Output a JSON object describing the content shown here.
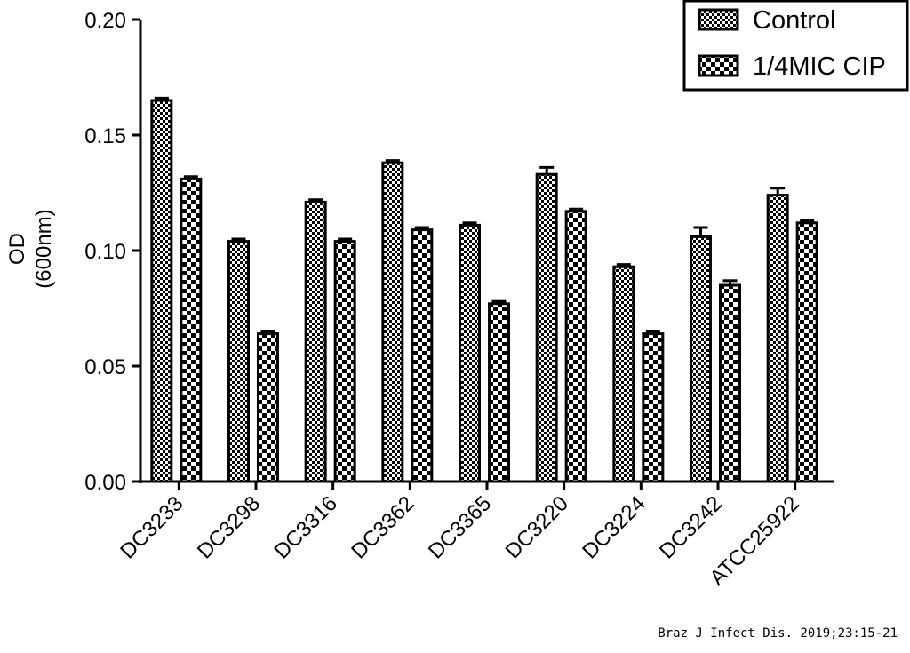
{
  "chart_data": {
    "type": "bar",
    "title": "",
    "xlabel": "",
    "ylabel": "OD",
    "ylabel_unit": "(600nm)",
    "ylim": [
      0,
      0.2
    ],
    "yticks": [
      "0.00",
      "0.05",
      "0.10",
      "0.15",
      "0.20"
    ],
    "ytick_values": [
      0,
      0.05,
      0.1,
      0.15,
      0.2
    ],
    "categories": [
      "DC3233",
      "DC3298",
      "DC3316",
      "DC3362",
      "DC3365",
      "DC3220",
      "DC3224",
      "DC3242",
      "ATCC25922"
    ],
    "series": [
      {
        "name": "Control",
        "pattern": "fine-checker",
        "values": [
          0.165,
          0.104,
          0.121,
          0.138,
          0.111,
          0.133,
          0.093,
          0.106,
          0.124
        ],
        "errors": [
          0.001,
          0.001,
          0.001,
          0.001,
          0.001,
          0.003,
          0.001,
          0.004,
          0.003
        ]
      },
      {
        "name": "1/4MIC CIP",
        "pattern": "coarse-checker",
        "values": [
          0.131,
          0.064,
          0.104,
          0.109,
          0.077,
          0.117,
          0.064,
          0.085,
          0.112
        ],
        "errors": [
          0.001,
          0.001,
          0.001,
          0.001,
          0.001,
          0.001,
          0.001,
          0.002,
          0.001
        ]
      }
    ],
    "legend_position": "top-right",
    "grid": false
  },
  "citation": "Braz J Infect Dis. 2019;23:15-21",
  "colors": {
    "ink": "#000000",
    "background": "#ffffff"
  }
}
